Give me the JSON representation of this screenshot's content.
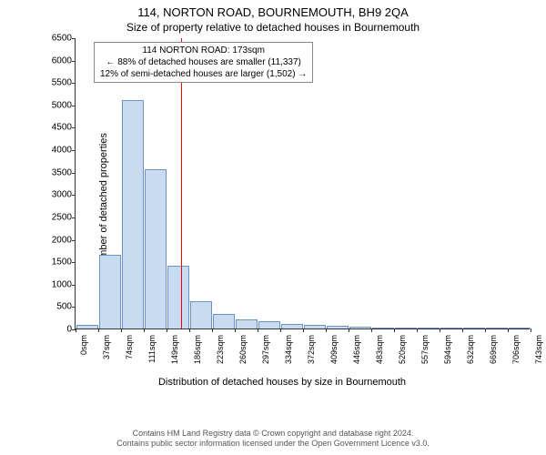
{
  "header": {
    "title_main": "114, NORTON ROAD, BOURNEMOUTH, BH9 2QA",
    "title_sub": "Size of property relative to detached houses in Bournemouth"
  },
  "chart": {
    "type": "histogram",
    "y_axis_label": "Number of detached properties",
    "x_axis_label": "Distribution of detached houses by size in Bournemouth",
    "ylim": [
      0,
      6500
    ],
    "ytick_step": 500,
    "yticks": [
      0,
      500,
      1000,
      1500,
      2000,
      2500,
      3000,
      3500,
      4000,
      4500,
      5000,
      5500,
      6000,
      6500
    ],
    "xticks": [
      "0sqm",
      "37sqm",
      "74sqm",
      "111sqm",
      "149sqm",
      "186sqm",
      "223sqm",
      "260sqm",
      "297sqm",
      "334sqm",
      "372sqm",
      "409sqm",
      "446sqm",
      "483sqm",
      "520sqm",
      "557sqm",
      "594sqm",
      "632sqm",
      "669sqm",
      "706sqm",
      "743sqm"
    ],
    "bar_color": "#c8dbf0",
    "bar_border": "#6b93c4",
    "plot_bg": "#ffffff",
    "bars": [
      80,
      1650,
      5100,
      3550,
      1400,
      600,
      320,
      200,
      160,
      110,
      80,
      60,
      40,
      30,
      20,
      15,
      10,
      5,
      5,
      3
    ],
    "marker": {
      "color": "#ff0000",
      "position_sqm": 173,
      "box_lines": [
        "114 NORTON ROAD: 173sqm",
        "← 88% of detached houses are smaller (11,337)",
        "12% of semi-detached houses are larger (1,502) →"
      ]
    },
    "label_fontsize": 11,
    "tick_fontsize": 10
  },
  "footer": {
    "line1": "Contains HM Land Registry data © Crown copyright and database right 2024.",
    "line2": "Contains public sector information licensed under the Open Government Licence v3.0."
  }
}
